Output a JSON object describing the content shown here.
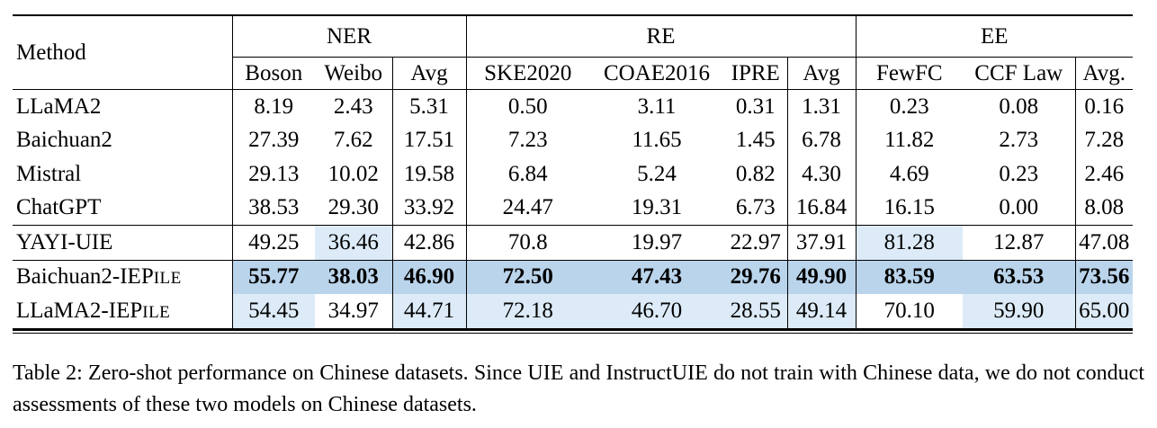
{
  "table": {
    "header": {
      "method_label": "Method",
      "groups": [
        {
          "label": "NER",
          "cols": [
            "Boson",
            "Weibo",
            "Avg"
          ]
        },
        {
          "label": "RE",
          "cols": [
            "SKE2020",
            "COAE2016",
            "IPRE",
            "Avg"
          ]
        },
        {
          "label": "EE",
          "cols": [
            "FewFC",
            "CCF Law",
            "Avg."
          ]
        }
      ]
    },
    "rows": [
      {
        "method": "LLaMA2",
        "method_sc": "",
        "bold": false,
        "rule_above": false,
        "values": [
          "8.19",
          "2.43",
          "5.31",
          "0.50",
          "3.11",
          "0.31",
          "1.31",
          "0.23",
          "0.08",
          "0.16"
        ],
        "hl": [
          0,
          0,
          0,
          0,
          0,
          0,
          0,
          0,
          0,
          0
        ]
      },
      {
        "method": "Baichuan2",
        "method_sc": "",
        "bold": false,
        "rule_above": false,
        "values": [
          "27.39",
          "7.62",
          "17.51",
          "7.23",
          "11.65",
          "1.45",
          "6.78",
          "11.82",
          "2.73",
          "7.28"
        ],
        "hl": [
          0,
          0,
          0,
          0,
          0,
          0,
          0,
          0,
          0,
          0
        ]
      },
      {
        "method": "Mistral",
        "method_sc": "",
        "bold": false,
        "rule_above": false,
        "values": [
          "29.13",
          "10.02",
          "19.58",
          "6.84",
          "5.24",
          "0.82",
          "4.30",
          "4.69",
          "0.23",
          "2.46"
        ],
        "hl": [
          0,
          0,
          0,
          0,
          0,
          0,
          0,
          0,
          0,
          0
        ]
      },
      {
        "method": "ChatGPT",
        "method_sc": "",
        "bold": false,
        "rule_above": false,
        "values": [
          "38.53",
          "29.30",
          "33.92",
          "24.47",
          "19.31",
          "6.73",
          "16.84",
          "16.15",
          "0.00",
          "8.08"
        ],
        "hl": [
          0,
          0,
          0,
          0,
          0,
          0,
          0,
          0,
          0,
          0
        ]
      },
      {
        "method": "YAYI-UIE",
        "method_sc": "",
        "bold": false,
        "rule_above": true,
        "values": [
          "49.25",
          "36.46",
          "42.86",
          "70.8",
          "19.97",
          "22.97",
          "37.91",
          "81.28",
          "12.87",
          "47.08"
        ],
        "hl": [
          0,
          1,
          0,
          0,
          0,
          0,
          0,
          1,
          0,
          0
        ]
      },
      {
        "method": "Baichuan2-IEP",
        "method_sc": "ILE",
        "bold": true,
        "rule_above": true,
        "values": [
          "55.77",
          "38.03",
          "46.90",
          "72.50",
          "47.43",
          "29.76",
          "49.90",
          "83.59",
          "63.53",
          "73.56"
        ],
        "hl": [
          2,
          2,
          2,
          2,
          2,
          2,
          2,
          2,
          2,
          2
        ]
      },
      {
        "method": "LLaMA2-IEP",
        "method_sc": "ILE",
        "bold": false,
        "rule_above": false,
        "values": [
          "54.45",
          "34.97",
          "44.71",
          "72.18",
          "46.70",
          "28.55",
          "49.14",
          "70.10",
          "59.90",
          "65.00"
        ],
        "hl": [
          1,
          0,
          1,
          1,
          1,
          1,
          1,
          0,
          1,
          1
        ]
      }
    ],
    "highlight_colors": {
      "light": "#dcebf7",
      "dark": "#bad4eb"
    }
  },
  "caption": "Table 2: Zero-shot performance on Chinese datasets. Since UIE and InstructUIE do not train with Chinese data, we do not conduct assessments of these two models on Chinese datasets."
}
